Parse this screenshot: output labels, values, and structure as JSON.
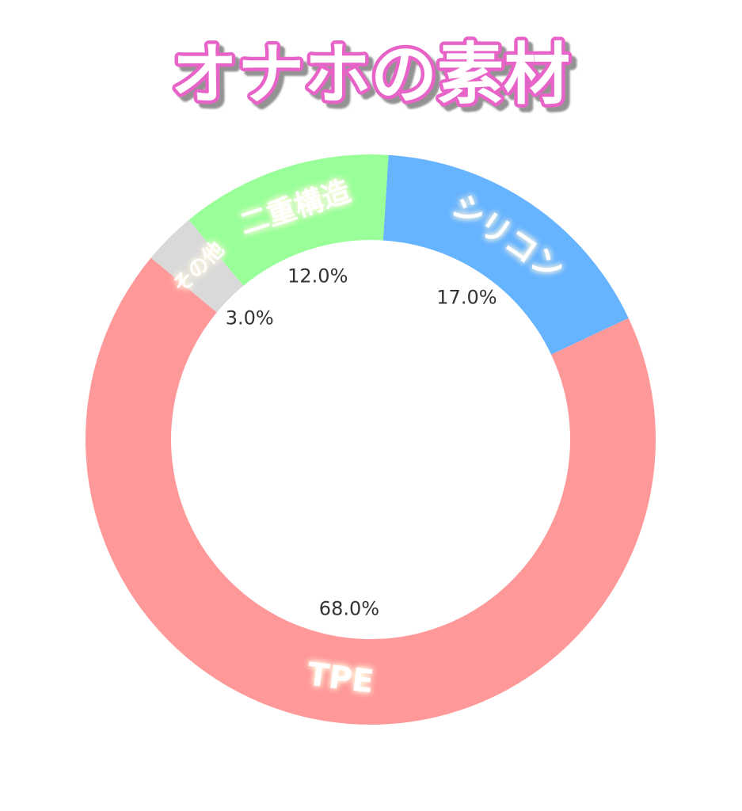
{
  "chart_data": {
    "type": "donut",
    "title": "オナホの素材",
    "categories": [
      "シリコン",
      "TPE",
      "その他",
      "二重構造"
    ],
    "values": [
      17,
      68,
      3,
      12
    ],
    "value_labels": [
      "17.0%",
      "68.0%",
      "3.0%",
      "12.0%"
    ],
    "colors": [
      "#66b3ff",
      "#ff9999",
      "#d9d9d9",
      "#99ff99"
    ]
  }
}
